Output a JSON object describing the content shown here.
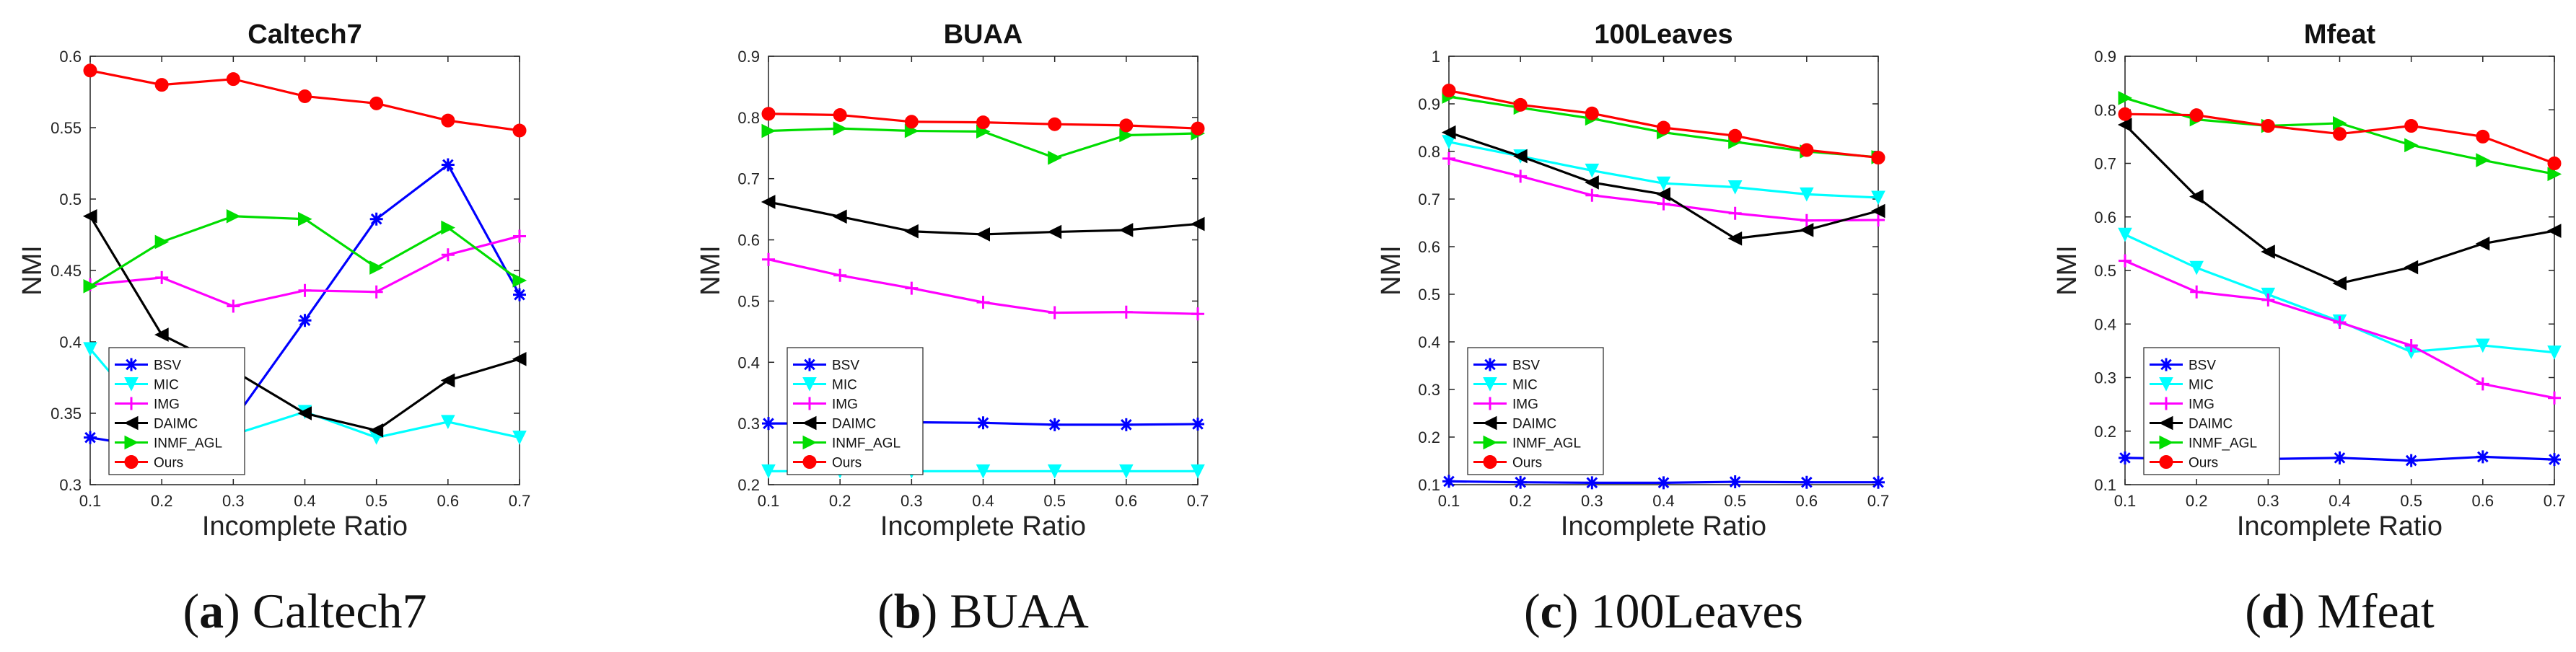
{
  "chart_data": [
    {
      "type": "line",
      "title": "Caltech7",
      "caption_letter": "(a)",
      "caption_text": "Caltech7",
      "xlabel": "Incomplete Ratio",
      "ylabel": "NMI",
      "x": [
        0.1,
        0.2,
        0.3,
        0.4,
        0.5,
        0.6,
        0.7
      ],
      "xticks": [
        "0.1",
        "0.2",
        "0.3",
        "0.4",
        "0.5",
        "0.6",
        "0.7"
      ],
      "ylim": [
        0.3,
        0.6
      ],
      "yticks": [
        "0.3",
        "0.35",
        "0.4",
        "0.45",
        "0.5",
        "0.55",
        "0.6"
      ],
      "legend_position": "bottom-left",
      "series": [
        {
          "name": "BSV",
          "color": "#0000ff",
          "marker": "star",
          "values": [
            0.333,
            0.325,
            0.345,
            0.415,
            0.486,
            0.524,
            0.433
          ]
        },
        {
          "name": "MIC",
          "color": "#00ffff",
          "marker": "tri-down",
          "values": [
            0.395,
            0.336,
            0.335,
            0.351,
            0.333,
            0.344,
            0.333
          ]
        },
        {
          "name": "IMG",
          "color": "#ff00ff",
          "marker": "plus",
          "values": [
            0.44,
            0.445,
            0.425,
            0.436,
            0.435,
            0.461,
            0.474
          ]
        },
        {
          "name": "DAIMC",
          "color": "#000000",
          "marker": "tri-left",
          "values": [
            0.488,
            0.405,
            0.38,
            0.35,
            0.338,
            0.373,
            0.388
          ]
        },
        {
          "name": "INMF_AGL",
          "color": "#00dd00",
          "marker": "tri-right",
          "values": [
            0.439,
            0.47,
            0.488,
            0.486,
            0.452,
            0.48,
            0.443
          ]
        },
        {
          "name": "Ours",
          "color": "#ff0000",
          "marker": "circle",
          "values": [
            0.59,
            0.58,
            0.584,
            0.572,
            0.567,
            0.555,
            0.548
          ]
        }
      ]
    },
    {
      "type": "line",
      "title": "BUAA",
      "caption_letter": "(b)",
      "caption_text": "BUAA",
      "xlabel": "Incomplete Ratio",
      "ylabel": "NMI",
      "x": [
        0.1,
        0.2,
        0.3,
        0.4,
        0.5,
        0.6,
        0.7
      ],
      "xticks": [
        "0.1",
        "0.2",
        "0.3",
        "0.4",
        "0.5",
        "0.6",
        "0.7"
      ],
      "ylim": [
        0.2,
        0.9
      ],
      "yticks": [
        "0.2",
        "0.3",
        "0.4",
        "0.5",
        "0.6",
        "0.7",
        "0.8",
        "0.9"
      ],
      "legend_position": "bottom-left",
      "series": [
        {
          "name": "BSV",
          "color": "#0000ff",
          "marker": "star",
          "values": [
            0.3,
            0.3,
            0.302,
            0.301,
            0.298,
            0.298,
            0.299
          ]
        },
        {
          "name": "MIC",
          "color": "#00ffff",
          "marker": "tri-down",
          "values": [
            0.222,
            0.222,
            0.222,
            0.222,
            0.222,
            0.222,
            0.222
          ]
        },
        {
          "name": "IMG",
          "color": "#ff00ff",
          "marker": "plus",
          "values": [
            0.568,
            0.542,
            0.521,
            0.498,
            0.481,
            0.482,
            0.479
          ]
        },
        {
          "name": "DAIMC",
          "color": "#000000",
          "marker": "tri-left",
          "values": [
            0.662,
            0.638,
            0.614,
            0.609,
            0.613,
            0.616,
            0.626
          ]
        },
        {
          "name": "INMF_AGL",
          "color": "#00dd00",
          "marker": "tri-right",
          "values": [
            0.778,
            0.782,
            0.778,
            0.777,
            0.734,
            0.771,
            0.774
          ]
        },
        {
          "name": "Ours",
          "color": "#ff0000",
          "marker": "circle",
          "values": [
            0.806,
            0.804,
            0.793,
            0.792,
            0.789,
            0.787,
            0.782
          ]
        }
      ]
    },
    {
      "type": "line",
      "title": "100Leaves",
      "caption_letter": "(c)",
      "caption_text": "100Leaves",
      "xlabel": "Incomplete Ratio",
      "ylabel": "NMI",
      "x": [
        0.1,
        0.2,
        0.3,
        0.4,
        0.5,
        0.6,
        0.7
      ],
      "xticks": [
        "0.1",
        "0.2",
        "0.3",
        "0.4",
        "0.5",
        "0.6",
        "0.7"
      ],
      "ylim": [
        0.1,
        1
      ],
      "yticks": [
        "0.1",
        "0.2",
        "0.3",
        "0.4",
        "0.5",
        "0.6",
        "0.7",
        "0.8",
        "0.9",
        "1"
      ],
      "legend_position": "bottom-left",
      "series": [
        {
          "name": "BSV",
          "color": "#0000ff",
          "marker": "star",
          "values": [
            0.107,
            0.105,
            0.104,
            0.104,
            0.106,
            0.105,
            0.105
          ]
        },
        {
          "name": "MIC",
          "color": "#00ffff",
          "marker": "tri-down",
          "values": [
            0.82,
            0.79,
            0.76,
            0.733,
            0.725,
            0.71,
            0.703
          ]
        },
        {
          "name": "IMG",
          "color": "#ff00ff",
          "marker": "plus",
          "values": [
            0.785,
            0.748,
            0.708,
            0.69,
            0.67,
            0.655,
            0.656
          ]
        },
        {
          "name": "DAIMC",
          "color": "#000000",
          "marker": "tri-left",
          "values": [
            0.84,
            0.79,
            0.735,
            0.71,
            0.617,
            0.635,
            0.675
          ]
        },
        {
          "name": "INMF_AGL",
          "color": "#00dd00",
          "marker": "tri-right",
          "values": [
            0.915,
            0.892,
            0.869,
            0.84,
            0.82,
            0.8,
            0.788
          ]
        },
        {
          "name": "Ours",
          "color": "#ff0000",
          "marker": "circle",
          "values": [
            0.928,
            0.898,
            0.88,
            0.85,
            0.833,
            0.803,
            0.787
          ]
        }
      ]
    },
    {
      "type": "line",
      "title": "Mfeat",
      "caption_letter": "(d)",
      "caption_text": "Mfeat",
      "xlabel": "Incomplete Ratio",
      "ylabel": "NMI",
      "x": [
        0.1,
        0.2,
        0.3,
        0.4,
        0.5,
        0.6,
        0.7
      ],
      "xticks": [
        "0.1",
        "0.2",
        "0.3",
        "0.4",
        "0.5",
        "0.6",
        "0.7"
      ],
      "ylim": [
        0.1,
        0.9
      ],
      "yticks": [
        "0.1",
        "0.2",
        "0.3",
        "0.4",
        "0.5",
        "0.6",
        "0.7",
        "0.8",
        "0.9"
      ],
      "legend_position": "bottom-left",
      "series": [
        {
          "name": "BSV",
          "color": "#0000ff",
          "marker": "star",
          "values": [
            0.15,
            0.148,
            0.148,
            0.15,
            0.145,
            0.152,
            0.147
          ]
        },
        {
          "name": "MIC",
          "color": "#00ffff",
          "marker": "tri-down",
          "values": [
            0.567,
            0.505,
            0.455,
            0.405,
            0.348,
            0.36,
            0.347
          ]
        },
        {
          "name": "IMG",
          "color": "#ff00ff",
          "marker": "plus",
          "values": [
            0.518,
            0.46,
            0.445,
            0.403,
            0.36,
            0.288,
            0.262
          ]
        },
        {
          "name": "DAIMC",
          "color": "#000000",
          "marker": "tri-left",
          "values": [
            0.772,
            0.638,
            0.535,
            0.476,
            0.506,
            0.55,
            0.574
          ]
        },
        {
          "name": "INMF_AGL",
          "color": "#00dd00",
          "marker": "tri-right",
          "values": [
            0.822,
            0.782,
            0.77,
            0.775,
            0.734,
            0.706,
            0.68
          ]
        },
        {
          "name": "Ours",
          "color": "#ff0000",
          "marker": "circle",
          "values": [
            0.792,
            0.79,
            0.77,
            0.755,
            0.77,
            0.75,
            0.7
          ]
        }
      ]
    }
  ]
}
